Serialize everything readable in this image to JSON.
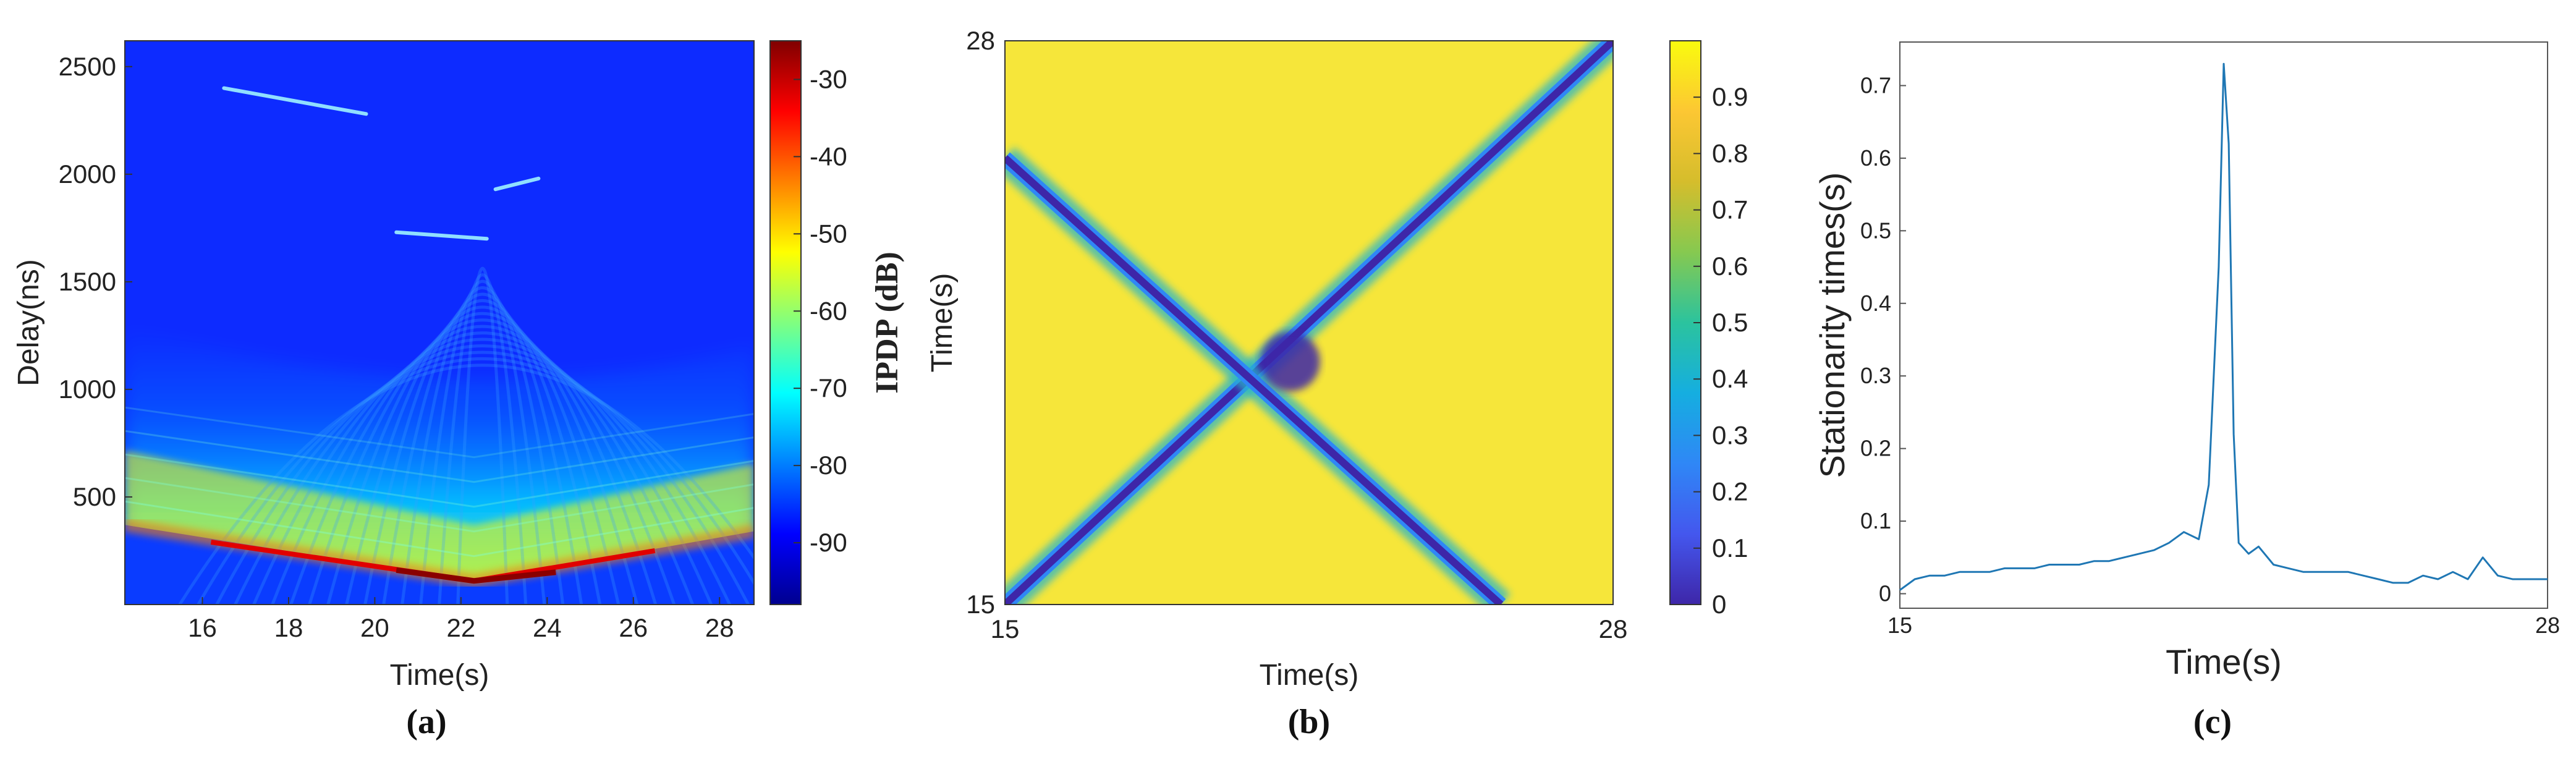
{
  "colors": {
    "jet": [
      "#00008f",
      "#0000ff",
      "#0080ff",
      "#00ffff",
      "#80ff80",
      "#ffff00",
      "#ff8000",
      "#ff0000",
      "#800000"
    ],
    "parula": [
      "#3e26a8",
      "#4457ee",
      "#2f87f6",
      "#15aee0",
      "#2bc39e",
      "#86c950",
      "#d5bd2c",
      "#fcc733",
      "#f9fb0e"
    ],
    "line": "#1f77b4"
  },
  "chart_data": [
    {
      "type": "heatmap",
      "panel_label": "(a)",
      "xlabel": "Time(s)",
      "ylabel": "Delay(ns)",
      "xlim": [
        14.2,
        28.8
      ],
      "ylim": [
        0,
        2620
      ],
      "xticks": [
        "16",
        "18",
        "20",
        "22",
        "24",
        "26",
        "28"
      ],
      "yticks": [
        "500",
        "1000",
        "1500",
        "2000",
        "2500"
      ],
      "colorbar": {
        "label": "IPDP (dB)",
        "range": [
          -98,
          -25
        ],
        "ticks": [
          "-30",
          "-40",
          "-50",
          "-60",
          "-70",
          "-80",
          "-90"
        ],
        "colormap": "jet"
      },
      "features": {
        "main_path_vertex": {
          "time": 22.3,
          "delay": 110,
          "level_db": -30
        },
        "main_path_edges": [
          {
            "time": 14.2,
            "delay": 370
          },
          {
            "time": 28.8,
            "delay": 340
          }
        ],
        "scatter_streaks": [
          {
            "t0": 16.5,
            "d0": 2400,
            "t1": 19.8,
            "d1": 2280
          },
          {
            "t0": 20.5,
            "d0": 1730,
            "t1": 22.6,
            "d1": 1700
          },
          {
            "t0": 22.8,
            "d0": 1930,
            "t1": 23.8,
            "d1": 1980
          }
        ]
      }
    },
    {
      "type": "heatmap",
      "panel_label": "(b)",
      "xlabel": "Time(s)",
      "ylabel": "Time(s)",
      "xlim": [
        15,
        28
      ],
      "ylim": [
        15,
        28
      ],
      "xticks": [
        "15",
        "28"
      ],
      "yticks": [
        "15",
        "28"
      ],
      "colorbar": {
        "range": [
          0,
          1
        ],
        "ticks": [
          "0",
          "0.1",
          "0.2",
          "0.3",
          "0.4",
          "0.5",
          "0.6",
          "0.7",
          "0.8",
          "0.9"
        ],
        "colormap": "parula"
      },
      "features": {
        "diagonal": {
          "from": [
            15,
            15
          ],
          "to": [
            28,
            28
          ]
        },
        "anti_diagonal": {
          "from": [
            15,
            25.3
          ],
          "to": [
            25.6,
            15
          ]
        },
        "crossing": {
          "x": 21.1,
          "y": 20.6
        }
      }
    },
    {
      "type": "line",
      "panel_label": "(c)",
      "xlabel": "Time(s)",
      "ylabel": "Stationarity times(s)",
      "xlim": [
        15,
        28
      ],
      "ylim": [
        -0.02,
        0.76
      ],
      "xticks": [
        "15",
        "28"
      ],
      "yticks": [
        "0",
        "0.1",
        "0.2",
        "0.3",
        "0.4",
        "0.5",
        "0.6",
        "0.7"
      ],
      "series": [
        {
          "x": [
            15.0,
            15.3,
            15.6,
            15.9,
            16.2,
            16.5,
            16.8,
            17.1,
            17.4,
            17.7,
            18.0,
            18.3,
            18.6,
            18.9,
            19.2,
            19.5,
            19.8,
            20.1,
            20.4,
            20.7,
            21.0,
            21.2,
            21.4,
            21.5,
            21.6,
            21.7,
            21.8,
            22.0,
            22.2,
            22.5,
            22.8,
            23.1,
            23.4,
            23.7,
            24.0,
            24.3,
            24.6,
            24.9,
            25.2,
            25.5,
            25.8,
            26.1,
            26.4,
            26.7,
            27.0,
            27.3,
            27.6,
            28.0
          ],
          "values": [
            0.005,
            0.02,
            0.025,
            0.025,
            0.03,
            0.03,
            0.03,
            0.035,
            0.035,
            0.035,
            0.04,
            0.04,
            0.04,
            0.045,
            0.045,
            0.05,
            0.055,
            0.06,
            0.07,
            0.085,
            0.075,
            0.15,
            0.45,
            0.73,
            0.62,
            0.22,
            0.07,
            0.055,
            0.065,
            0.04,
            0.035,
            0.03,
            0.03,
            0.03,
            0.03,
            0.025,
            0.02,
            0.015,
            0.015,
            0.025,
            0.02,
            0.03,
            0.02,
            0.05,
            0.025,
            0.02,
            0.02,
            0.02
          ]
        }
      ]
    }
  ]
}
